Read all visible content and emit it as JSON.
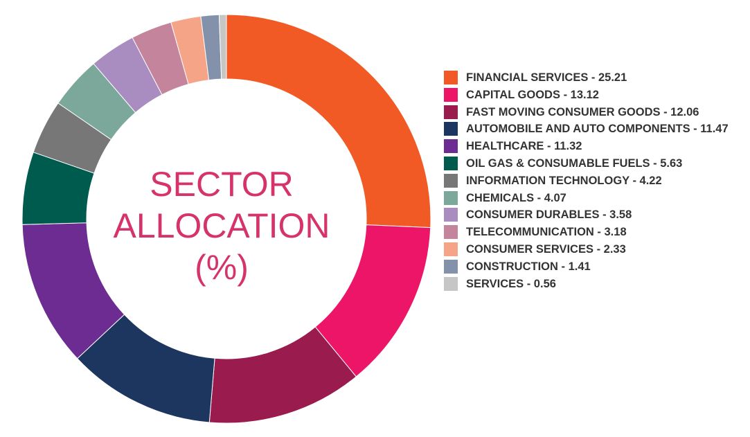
{
  "chart_data": {
    "type": "donut",
    "title": [
      "SECTOR",
      "ALLOCATION",
      "(%)"
    ],
    "categories": [
      "FINANCIAL SERVICES - 25.21",
      "CAPITAL GOODS - 13.12",
      "FAST MOVING CONSUMER GOODS - 12.06",
      "AUTOMOBILE AND AUTO COMPONENTS - 11.47",
      "HEALTHCARE - 11.32",
      "OIL GAS & CONSUMABLE FUELS - 5.63",
      "INFORMATION TECHNOLOGY - 4.22",
      "CHEMICALS - 4.07",
      "CONSUMER DURABLES - 3.58",
      "TELECOMMUNICATION - 3.18",
      "CONSUMER SERVICES - 2.33",
      "CONSTRUCTION - 1.41",
      "SERVICES - 0.56"
    ],
    "values": [
      25.21,
      13.12,
      12.06,
      11.47,
      11.32,
      5.63,
      4.22,
      4.07,
      3.58,
      3.18,
      2.33,
      1.41,
      0.56
    ],
    "colors": [
      "#f15a24",
      "#ec1567",
      "#9a1b4e",
      "#1c365f",
      "#6d2c91",
      "#005b4f",
      "#777777",
      "#7ba89b",
      "#a98cc0",
      "#c4849b",
      "#f6a487",
      "#8391aa",
      "#c6c6c6"
    ]
  }
}
